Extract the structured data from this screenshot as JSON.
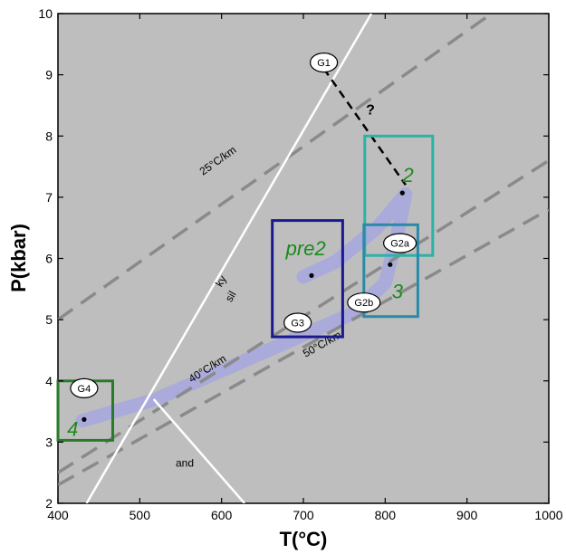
{
  "chart_data": {
    "type": "scatter",
    "xlabel": "T(°C)",
    "ylabel": "P(kbar)",
    "xlim": [
      400,
      1000
    ],
    "ylim": [
      2,
      10
    ],
    "xticks": [
      400,
      500,
      600,
      700,
      800,
      900,
      1000
    ],
    "yticks": [
      2,
      3,
      4,
      5,
      6,
      7,
      8,
      9,
      10
    ],
    "grid": false,
    "colors": {
      "background": "#bebebe",
      "path": "#a9a9dc",
      "dashed": "#8a8a8a",
      "white_line": "#ffffff",
      "green_box": "#2a7a2a",
      "teal_box": "#2ab3a6",
      "blue_box": "#2a8aa8",
      "navy_box": "#1a1a8e",
      "box_label": "#1a8a1a"
    },
    "geotherms": [
      {
        "label": "25°C/km",
        "points": [
          [
            400,
            5.0
          ],
          [
            930,
            10.0
          ]
        ],
        "label_at": [
          598,
          7.55
        ]
      },
      {
        "label": "40°C/km",
        "points": [
          [
            400,
            2.5
          ],
          [
            1000,
            7.6
          ]
        ],
        "label_at": [
          585,
          4.15
        ]
      },
      {
        "label": "50°C/km",
        "points": [
          [
            400,
            2.3
          ],
          [
            1000,
            6.8
          ]
        ],
        "label_at": [
          725,
          4.55
        ]
      }
    ],
    "phase_boundaries": [
      {
        "name": "ky-sil",
        "points": [
          [
            435,
            2.0
          ],
          [
            783,
            10.0
          ]
        ],
        "labels": [
          {
            "text": "ky",
            "at": [
              603,
              5.6
            ]
          },
          {
            "text": "sil",
            "at": [
              615,
              5.35
            ]
          }
        ]
      },
      {
        "name": "and-sil",
        "points": [
          [
            517,
            3.7
          ],
          [
            628,
            2.0
          ]
        ],
        "labels": [
          {
            "text": "and",
            "at": [
              555,
              2.6
            ]
          }
        ]
      }
    ],
    "pt_path": {
      "points": [
        [
          430,
          3.35
        ],
        [
          520,
          3.7
        ],
        [
          640,
          4.4
        ],
        [
          760,
          5.1
        ],
        [
          800,
          5.6
        ],
        [
          815,
          6.4
        ],
        [
          825,
          7.05
        ],
        [
          790,
          6.5
        ],
        [
          740,
          5.95
        ],
        [
          700,
          5.7
        ]
      ]
    },
    "dashed_link": {
      "points": [
        [
          725,
          9.1
        ],
        [
          825,
          7.2
        ]
      ],
      "label": "?",
      "label_at": [
        782,
        8.35
      ]
    },
    "boxes": [
      {
        "label": "2",
        "color": "teal",
        "x": [
          775,
          858
        ],
        "y": [
          6.05,
          8.0
        ],
        "label_at": [
          828,
          7.25
        ]
      },
      {
        "label": "3",
        "color": "blue",
        "x": [
          774,
          840
        ],
        "y": [
          5.05,
          6.55
        ],
        "label_at": [
          815,
          5.35
        ]
      },
      {
        "label": "pre2",
        "color": "navy",
        "x": [
          662,
          748
        ],
        "y": [
          4.72,
          6.62
        ],
        "label_at": [
          703,
          6.05
        ]
      },
      {
        "label": "4",
        "color": "green",
        "x": [
          400,
          467
        ],
        "y": [
          3.03,
          4.0
        ],
        "label_at": [
          418,
          3.1
        ]
      }
    ],
    "nodes": [
      {
        "label": "G1",
        "at": [
          725,
          9.2
        ]
      },
      {
        "label": "G2a",
        "at": [
          818,
          6.25
        ]
      },
      {
        "label": "G2b",
        "at": [
          774,
          5.28
        ]
      },
      {
        "label": "G3",
        "at": [
          693,
          4.95
        ]
      },
      {
        "label": "G4",
        "at": [
          432,
          3.88
        ]
      }
    ],
    "points": [
      {
        "x": 432,
        "y": 3.37
      },
      {
        "x": 710,
        "y": 5.72
      },
      {
        "x": 806,
        "y": 5.9
      },
      {
        "x": 821,
        "y": 7.07
      }
    ]
  }
}
